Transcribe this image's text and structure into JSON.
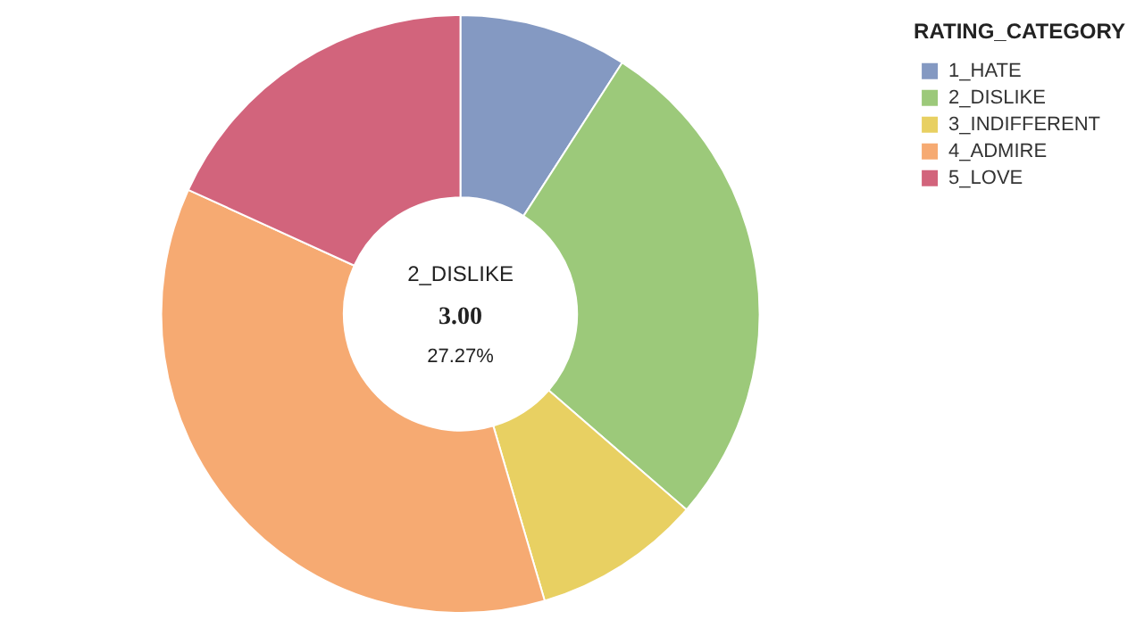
{
  "chart_data": {
    "type": "donut",
    "legend_title": "RATING_CATEGORY",
    "legend": "top right",
    "categories": [
      "1_HATE",
      "2_DISLIKE",
      "3_INDIFFERENT",
      "4_ADMIRE",
      "5_LOVE"
    ],
    "values": [
      1,
      3,
      1,
      4,
      2
    ],
    "colors": [
      "#8499c2",
      "#9cc97a",
      "#e8d062",
      "#f6aa72",
      "#d2647c"
    ],
    "annotations": [
      "2_DISLIKE",
      "3.00",
      "27.27%"
    ]
  }
}
